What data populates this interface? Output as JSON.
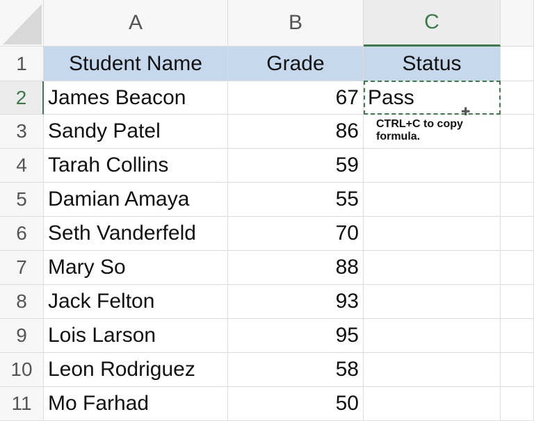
{
  "columns": [
    "A",
    "B",
    "C"
  ],
  "active_column": "C",
  "active_row": "2",
  "header_row": {
    "row": "1",
    "cells": [
      "Student Name",
      "Grade",
      "Status"
    ]
  },
  "rows": [
    {
      "row": "2",
      "name": "James Beacon",
      "grade": "67",
      "status": "Pass"
    },
    {
      "row": "3",
      "name": "Sandy Patel",
      "grade": "86",
      "status": ""
    },
    {
      "row": "4",
      "name": "Tarah Collins",
      "grade": "59",
      "status": ""
    },
    {
      "row": "5",
      "name": "Damian Amaya",
      "grade": "55",
      "status": ""
    },
    {
      "row": "6",
      "name": "Seth Vanderfeld",
      "grade": "70",
      "status": ""
    },
    {
      "row": "7",
      "name": "Mary So",
      "grade": "88",
      "status": ""
    },
    {
      "row": "8",
      "name": "Jack Felton",
      "grade": "93",
      "status": ""
    },
    {
      "row": "9",
      "name": "Lois Larson",
      "grade": "95",
      "status": ""
    },
    {
      "row": "10",
      "name": "Leon Rodriguez",
      "grade": "58",
      "status": ""
    },
    {
      "row": "11",
      "name": "Mo Farhad",
      "grade": "50",
      "status": ""
    }
  ],
  "annotation": "CTRL+C to copy formula.",
  "colors": {
    "accent": "#3c7a4c",
    "header_fill": "#c5d8ec"
  }
}
